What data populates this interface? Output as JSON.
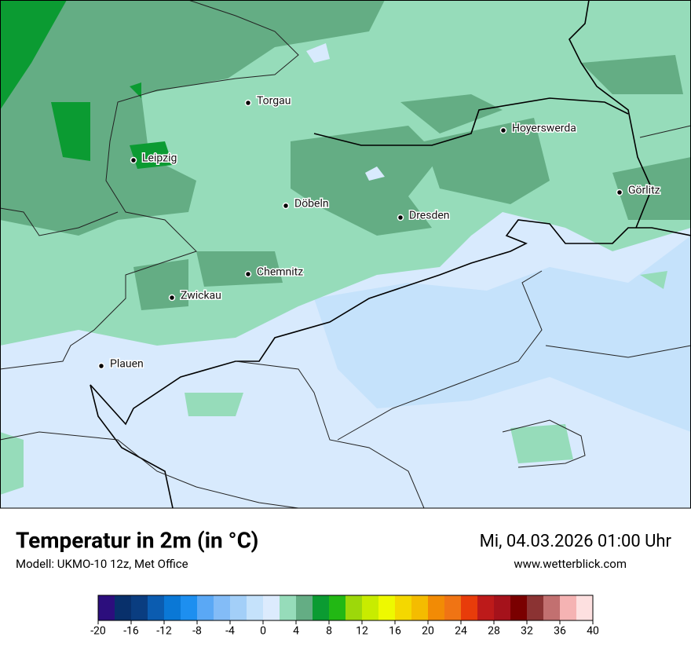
{
  "map": {
    "cities": [
      "Torgau",
      "Hoyerswerda",
      "Leipzig",
      "Görlitz",
      "Döbeln",
      "Dresden",
      "Chemnitz",
      "Zwickau",
      "Plauen"
    ]
  },
  "footer": {
    "title": "Temperatur in 2m (in °C)",
    "model": "Modell: UKMO-10 12z, Met Office",
    "datetime": "Mi, 04.03.2026 01:00 Uhr",
    "website": "www.wetterblick.com"
  },
  "legend": {
    "range": [
      -20,
      40
    ],
    "ticks": [
      -20,
      -16,
      -12,
      -8,
      -4,
      0,
      4,
      8,
      12,
      16,
      20,
      24,
      28,
      32,
      36,
      40
    ],
    "colors": [
      "#2c0e7d",
      "#08306b",
      "#0a3d80",
      "#0b5cb0",
      "#0a78d6",
      "#1d8ff0",
      "#5aa8f5",
      "#83bcf7",
      "#a3cff8",
      "#c5e2fb",
      "#dcebfd",
      "#96dcba",
      "#64ad84",
      "#0b9b32",
      "#22b814",
      "#9dd80a",
      "#c8ec00",
      "#eef900",
      "#f4d800",
      "#f4bc00",
      "#f28b05",
      "#f07414",
      "#e83c0a",
      "#bd1a1a",
      "#a5121b",
      "#7a0000",
      "#8b3333",
      "#c27070",
      "#f5b3b3",
      "#fde0e0"
    ]
  }
}
